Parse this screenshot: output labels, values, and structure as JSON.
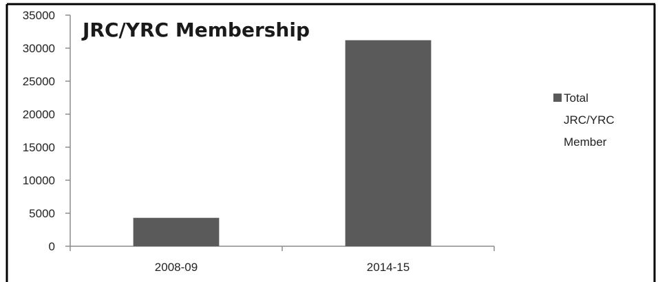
{
  "chart_data": {
    "type": "bar",
    "title": "JRC/YRC  Membership",
    "xlabel": "",
    "ylabel": "",
    "categories": [
      "2008-09",
      "2014-15"
    ],
    "series": [
      {
        "name": "Total JRC/YRC Member",
        "values": [
          4300,
          31200
        ],
        "color": "#5a5a5a"
      }
    ],
    "ylim": [
      0,
      35000
    ],
    "yticks": [
      0,
      5000,
      10000,
      15000,
      20000,
      25000,
      30000,
      35000
    ],
    "ytick_labels": [
      "0",
      "5000",
      "10000",
      "15000",
      "20000",
      "25000",
      "30000",
      "35000"
    ],
    "grid": false,
    "legend_position": "right",
    "legend_lines": [
      "Total",
      "JRC/YRC",
      "Member"
    ]
  }
}
